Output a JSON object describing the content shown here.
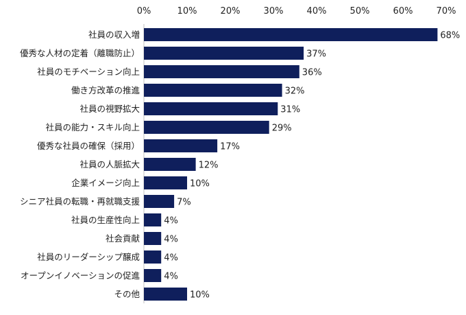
{
  "colors": {
    "bar": "#0F1F5C",
    "text": "#222222",
    "axis": "#BFBFBF"
  },
  "chart_data": {
    "type": "bar",
    "orientation": "horizontal",
    "title": "",
    "xlabel": "",
    "ylabel": "",
    "xlim": [
      0,
      70
    ],
    "x_ticks": [
      "0%",
      "10%",
      "20%",
      "30%",
      "40%",
      "50%",
      "60%",
      "70%"
    ],
    "tick_position": "top",
    "grid": false,
    "legend": "none",
    "categories": [
      "社員の収入増",
      "優秀な人材の定着（離職防止）",
      "社員のモチベーション向上",
      "働き方改革の推進",
      "社員の視野拡大",
      "社員の能力・スキル向上",
      "優秀な社員の確保（採用）",
      "社員の人脈拡大",
      "企業イメージ向上",
      "シニア社員の転職・再就職支援",
      "社員の生産性向上",
      "社会貢献",
      "社員のリーダーシップ醸成",
      "オープンイノベーションの促進",
      "その他"
    ],
    "values": [
      68,
      37,
      36,
      32,
      31,
      29,
      17,
      12,
      10,
      7,
      4,
      4,
      4,
      4,
      10
    ],
    "value_labels": [
      "68%",
      "37%",
      "36%",
      "32%",
      "31%",
      "29%",
      "17%",
      "12%",
      "10%",
      "7%",
      "4%",
      "4%",
      "4%",
      "4%",
      "10%"
    ]
  }
}
